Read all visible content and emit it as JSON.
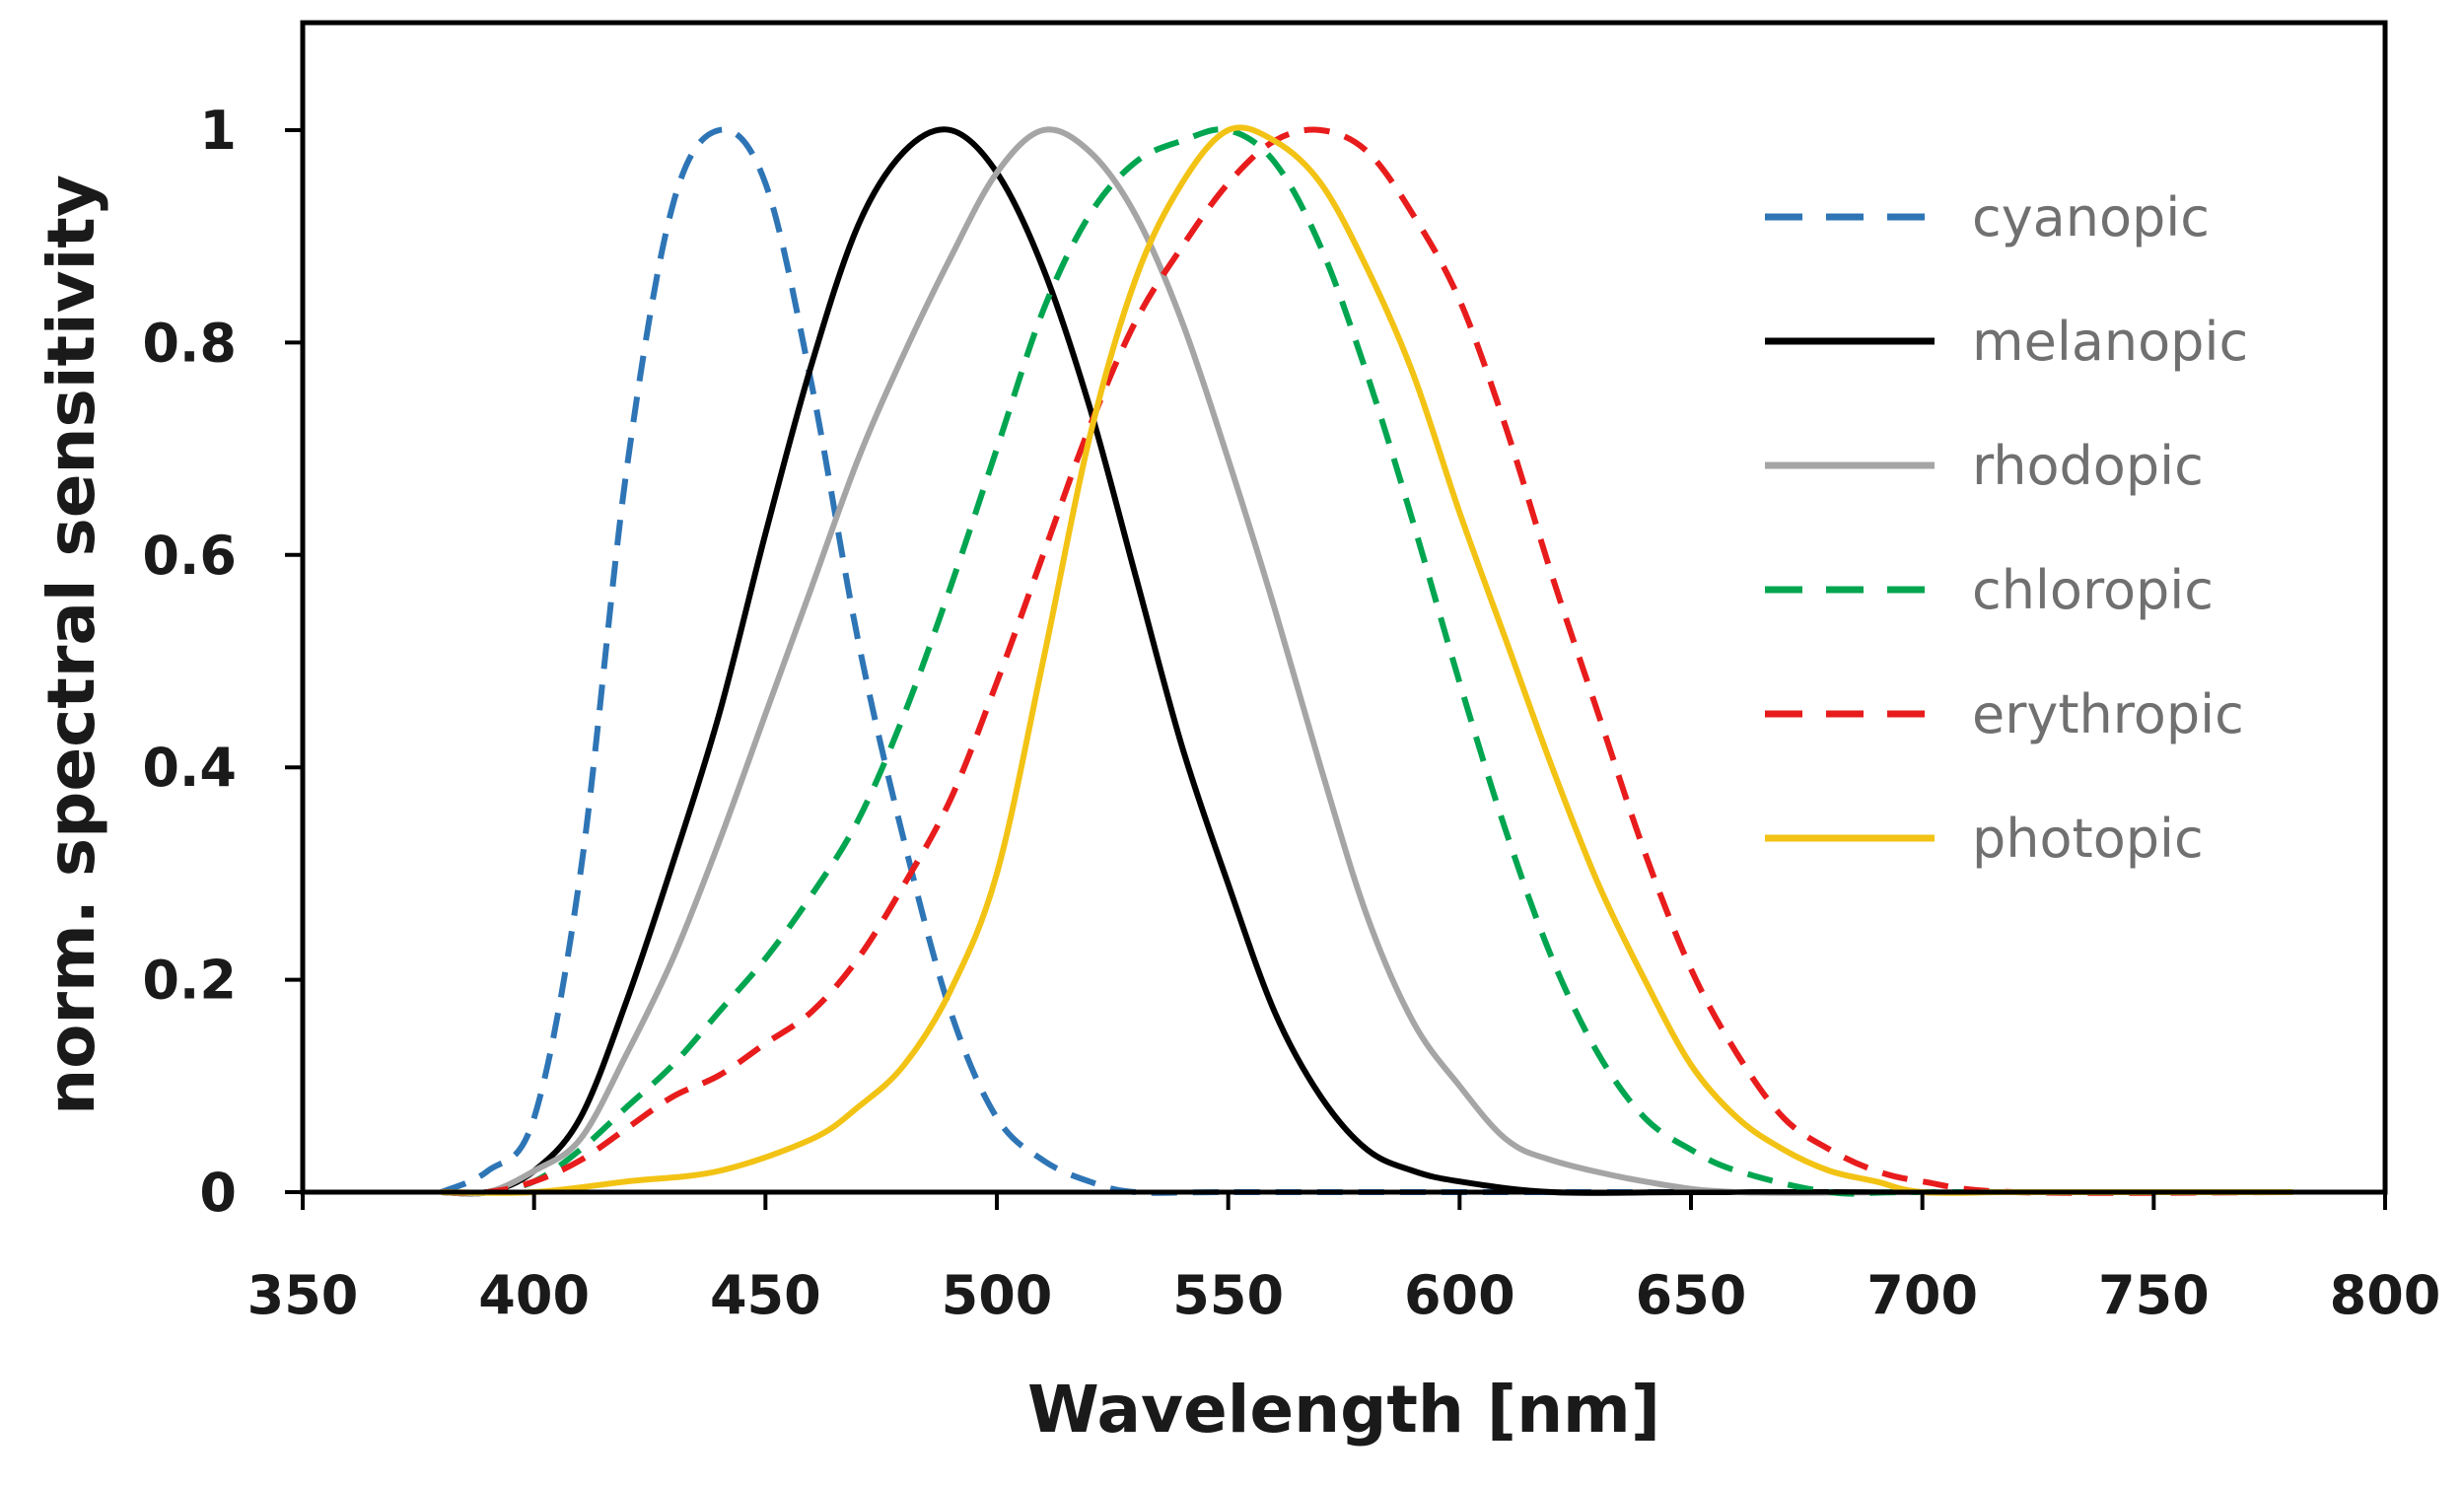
{
  "chart_data": {
    "type": "line",
    "title": "",
    "xlabel": "Wavelength [nm]",
    "ylabel": "norm. spectral sensitivity",
    "xlim": [
      350,
      800
    ],
    "ylim": [
      0,
      1.1
    ],
    "xticks": [
      350,
      400,
      450,
      500,
      550,
      600,
      650,
      700,
      750,
      800
    ],
    "yticks": [
      0,
      0.2,
      0.4,
      0.6,
      0.8,
      1
    ],
    "ytick_labels": [
      "0",
      "0.2",
      "0.4",
      "0.6",
      "0.8",
      "1"
    ],
    "grid": false,
    "legend_position": "top-right",
    "series": [
      {
        "name": "cyanopic",
        "color": "#2e75b6",
        "style": "dashed",
        "x": [
          380,
          390,
          400,
          410,
          420,
          430,
          440,
          450,
          460,
          470,
          480,
          490,
          500,
          510,
          520,
          530,
          550,
          600,
          650,
          700,
          780
        ],
        "y": [
          0.0,
          0.02,
          0.07,
          0.3,
          0.68,
          0.93,
          1.0,
          0.95,
          0.76,
          0.52,
          0.33,
          0.17,
          0.07,
          0.03,
          0.01,
          0.0,
          0.0,
          0.0,
          0.0,
          0.0,
          0.0
        ]
      },
      {
        "name": "melanopic",
        "color": "#000000",
        "style": "solid",
        "x": [
          380,
          390,
          400,
          410,
          420,
          430,
          440,
          450,
          460,
          470,
          480,
          490,
          500,
          510,
          520,
          530,
          540,
          550,
          560,
          570,
          580,
          590,
          600,
          620,
          650,
          700,
          780
        ],
        "y": [
          0.0,
          0.0,
          0.02,
          0.07,
          0.18,
          0.31,
          0.45,
          0.62,
          0.78,
          0.91,
          0.98,
          1.0,
          0.96,
          0.87,
          0.74,
          0.58,
          0.42,
          0.29,
          0.17,
          0.09,
          0.04,
          0.02,
          0.01,
          0.0,
          0.0,
          0.0,
          0.0
        ]
      },
      {
        "name": "rhodopic",
        "color": "#a5a5a5",
        "style": "solid",
        "x": [
          380,
          390,
          400,
          410,
          420,
          430,
          440,
          450,
          460,
          470,
          480,
          490,
          500,
          510,
          520,
          530,
          540,
          550,
          560,
          570,
          580,
          590,
          600,
          610,
          620,
          640,
          660,
          700,
          780
        ],
        "y": [
          0.0,
          0.0,
          0.02,
          0.05,
          0.13,
          0.22,
          0.33,
          0.45,
          0.57,
          0.69,
          0.79,
          0.88,
          0.96,
          1.0,
          0.98,
          0.92,
          0.82,
          0.69,
          0.55,
          0.4,
          0.26,
          0.16,
          0.1,
          0.05,
          0.03,
          0.01,
          0.0,
          0.0,
          0.0
        ]
      },
      {
        "name": "chloropic",
        "color": "#00a550",
        "style": "dashed",
        "x": [
          380,
          390,
          400,
          410,
          420,
          430,
          440,
          450,
          460,
          470,
          480,
          490,
          500,
          510,
          520,
          530,
          540,
          550,
          560,
          570,
          580,
          590,
          600,
          610,
          620,
          630,
          640,
          650,
          660,
          680,
          700,
          780
        ],
        "y": [
          0.0,
          0.0,
          0.01,
          0.04,
          0.08,
          0.12,
          0.17,
          0.22,
          0.28,
          0.35,
          0.45,
          0.57,
          0.7,
          0.83,
          0.92,
          0.97,
          0.99,
          1.0,
          0.97,
          0.89,
          0.77,
          0.63,
          0.48,
          0.34,
          0.22,
          0.13,
          0.07,
          0.04,
          0.02,
          0.0,
          0.0,
          0.0
        ]
      },
      {
        "name": "erythropic",
        "color": "#e81c1c",
        "style": "dashed",
        "x": [
          380,
          390,
          400,
          410,
          420,
          430,
          440,
          450,
          460,
          470,
          480,
          490,
          500,
          510,
          520,
          530,
          540,
          550,
          560,
          570,
          580,
          590,
          600,
          610,
          620,
          630,
          640,
          650,
          660,
          670,
          680,
          690,
          700,
          720,
          780
        ],
        "y": [
          0.0,
          0.0,
          0.01,
          0.03,
          0.06,
          0.09,
          0.11,
          0.14,
          0.17,
          0.22,
          0.29,
          0.37,
          0.48,
          0.6,
          0.72,
          0.82,
          0.89,
          0.95,
          0.99,
          1.0,
          0.98,
          0.92,
          0.84,
          0.72,
          0.58,
          0.45,
          0.32,
          0.21,
          0.13,
          0.07,
          0.04,
          0.02,
          0.01,
          0.0,
          0.0
        ]
      },
      {
        "name": "photopic",
        "color": "#f2c314",
        "style": "solid",
        "x": [
          380,
          400,
          420,
          440,
          460,
          470,
          480,
          490,
          500,
          510,
          520,
          530,
          540,
          550,
          560,
          570,
          580,
          590,
          600,
          610,
          620,
          630,
          640,
          650,
          660,
          670,
          680,
          690,
          700,
          720,
          750,
          780
        ],
        "y": [
          0.0,
          0.0,
          0.01,
          0.02,
          0.05,
          0.08,
          0.12,
          0.19,
          0.3,
          0.5,
          0.71,
          0.86,
          0.95,
          1.0,
          0.99,
          0.95,
          0.87,
          0.77,
          0.64,
          0.52,
          0.4,
          0.29,
          0.2,
          0.12,
          0.07,
          0.04,
          0.02,
          0.01,
          0.0,
          0.0,
          0.0,
          0.0
        ]
      }
    ]
  }
}
